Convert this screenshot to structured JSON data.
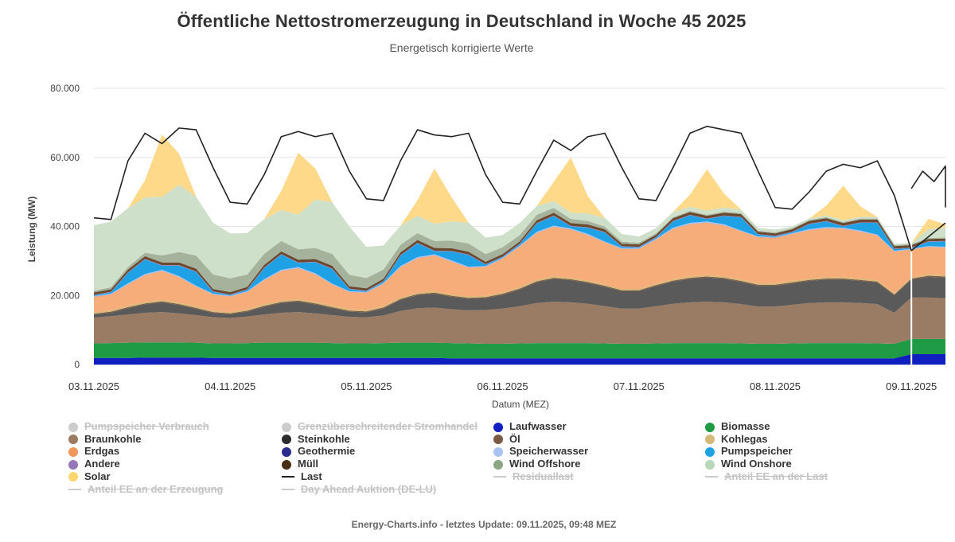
{
  "header": {
    "title": "Öffentliche Nettostromerzeugung in Deutschland in Woche 45 2025",
    "subtitle": "Energetisch korrigierte Werte"
  },
  "footer": {
    "text": "Energy-Charts.info - letztes Update: 09.11.2025, 09:48 MEZ"
  },
  "legend": [
    {
      "label": "Pumpspeicher Verbrauch",
      "color": "#c8c8c8",
      "symbol": "dot",
      "visible": false
    },
    {
      "label": "Grenzüberschreitender Stromhandel",
      "color": "#c8c8c8",
      "symbol": "dot",
      "visible": false
    },
    {
      "label": "Laufwasser",
      "color": "#1020c0",
      "symbol": "dot",
      "visible": true
    },
    {
      "label": "Biomasse",
      "color": "#1f9a45",
      "symbol": "dot",
      "visible": true
    },
    {
      "label": "Braunkohle",
      "color": "#9a7b63",
      "symbol": "dot",
      "visible": true
    },
    {
      "label": "Steinkohle",
      "color": "#2b2b2b",
      "symbol": "dot",
      "visible": true
    },
    {
      "label": "Öl",
      "color": "#7a5a43",
      "symbol": "dot",
      "visible": true
    },
    {
      "label": "Kohlegas",
      "color": "#d6b877",
      "symbol": "dot",
      "visible": true
    },
    {
      "label": "Erdgas",
      "color": "#f0985a",
      "symbol": "dot",
      "visible": true
    },
    {
      "label": "Geothermie",
      "color": "#2b2b8f",
      "symbol": "dot",
      "visible": true
    },
    {
      "label": "Speicherwasser",
      "color": "#aac4f2",
      "symbol": "dot",
      "visible": true
    },
    {
      "label": "Pumpspeicher",
      "color": "#1fa1e6",
      "symbol": "dot",
      "visible": true
    },
    {
      "label": "Andere",
      "color": "#9678b8",
      "symbol": "dot",
      "visible": true
    },
    {
      "label": "Müll",
      "color": "#4a2f14",
      "symbol": "dot",
      "visible": true
    },
    {
      "label": "Wind Offshore",
      "color": "#8aa683",
      "symbol": "dot",
      "visible": true
    },
    {
      "label": "Wind Onshore",
      "color": "#b7d8b7",
      "symbol": "dot",
      "visible": true
    },
    {
      "label": "Solar",
      "color": "#ffd66b",
      "symbol": "dot",
      "visible": true
    },
    {
      "label": "Last",
      "color": "#222222",
      "symbol": "line",
      "visible": true
    },
    {
      "label": "Residuallast",
      "color": "#c8c8c8",
      "symbol": "line",
      "visible": false
    },
    {
      "label": "Anteil EE an der Last",
      "color": "#c8c8c8",
      "symbol": "line",
      "visible": false
    },
    {
      "label": "Anteil EE an der Erzeugung",
      "color": "#c8c8c8",
      "symbol": "line",
      "visible": false
    },
    {
      "label": "Day Ahead Auktion (DE-LU)",
      "color": "#c8c8c8",
      "symbol": "line",
      "visible": false
    }
  ],
  "chart_data": {
    "type": "area",
    "stacked": true,
    "xlabel": "Datum (MEZ)",
    "ylabel": "Leistung (MW)",
    "ylim": [
      0,
      80000
    ],
    "yticks": [
      0,
      20000,
      40000,
      60000,
      80000
    ],
    "ytick_labels": [
      "0",
      "20.000",
      "40.000",
      "60.000",
      "80.000"
    ],
    "xlim": [
      0,
      150
    ],
    "x_unit": "hours since 03.11.2025 00:00",
    "xticks": [
      0,
      24,
      48,
      72,
      96,
      120,
      144
    ],
    "xtick_labels": [
      "03.11.2025",
      "04.11.2025",
      "05.11.2025",
      "06.11.2025",
      "07.11.2025",
      "08.11.2025",
      "09.11.2025"
    ],
    "forecast_from": 144,
    "grid": "horizontal",
    "legend_position": "bottom",
    "x": [
      0,
      3,
      6,
      9,
      12,
      15,
      18,
      21,
      24,
      27,
      30,
      33,
      36,
      39,
      42,
      45,
      48,
      51,
      54,
      57,
      60,
      63,
      66,
      69,
      72,
      75,
      78,
      81,
      84,
      87,
      90,
      93,
      96,
      99,
      102,
      105,
      108,
      111,
      114,
      117,
      120,
      123,
      126,
      129,
      132,
      135,
      138,
      141,
      144,
      147,
      150
    ],
    "series": [
      {
        "name": "Laufwasser",
        "color": "#1020c0",
        "values": [
          1900,
          1900,
          1900,
          2000,
          2000,
          2000,
          2000,
          1900,
          1900,
          1900,
          1900,
          1900,
          1900,
          1900,
          1900,
          1900,
          1900,
          1900,
          1900,
          1900,
          1900,
          1800,
          1800,
          1800,
          1800,
          1800,
          1800,
          1800,
          1800,
          1800,
          1800,
          1800,
          1800,
          1800,
          1800,
          1800,
          1800,
          1800,
          1800,
          1800,
          1800,
          1800,
          1800,
          1800,
          1800,
          1800,
          1800,
          1800,
          3000,
          3000,
          3000
        ]
      },
      {
        "name": "Biomasse",
        "color": "#1f9a45",
        "values": [
          4200,
          4300,
          4400,
          4400,
          4400,
          4400,
          4300,
          4200,
          4200,
          4300,
          4400,
          4400,
          4400,
          4400,
          4300,
          4200,
          4200,
          4300,
          4400,
          4400,
          4400,
          4400,
          4300,
          4200,
          4200,
          4300,
          4400,
          4400,
          4400,
          4400,
          4300,
          4200,
          4200,
          4300,
          4400,
          4400,
          4400,
          4400,
          4300,
          4200,
          4200,
          4300,
          4400,
          4400,
          4400,
          4400,
          4300,
          4200,
          4400,
          4400,
          4400
        ]
      },
      {
        "name": "Braunkohle",
        "color": "#9a7b63",
        "values": [
          7500,
          7800,
          8200,
          8600,
          8800,
          8400,
          8000,
          7600,
          7400,
          7700,
          8200,
          8700,
          8900,
          8500,
          8100,
          7700,
          7600,
          8000,
          9200,
          10000,
          10200,
          9800,
          9600,
          9800,
          10200,
          10800,
          11600,
          12000,
          11800,
          11400,
          10800,
          10200,
          10200,
          10800,
          11400,
          11800,
          12000,
          11800,
          11400,
          10800,
          10800,
          11200,
          11600,
          11800,
          11800,
          11600,
          11400,
          9000,
          12000,
          12000,
          11800
        ]
      },
      {
        "name": "Steinkohle",
        "color": "#5a5a5a",
        "values": [
          800,
          1000,
          1800,
          2400,
          2800,
          2400,
          1800,
          1200,
          1000,
          1400,
          2200,
          2800,
          3000,
          2600,
          2000,
          1500,
          1400,
          2000,
          3200,
          3800,
          4000,
          3600,
          3300,
          3400,
          4000,
          4800,
          6000,
          6600,
          6400,
          6000,
          5600,
          5000,
          5000,
          5800,
          6400,
          6800,
          7000,
          6800,
          6400,
          6000,
          6000,
          6200,
          6400,
          6600,
          6600,
          6400,
          6200,
          5000,
          5200,
          6000,
          6000
        ]
      },
      {
        "name": "Öl",
        "color": "#7a5a43",
        "values": [
          300,
          300,
          300,
          300,
          300,
          300,
          300,
          300,
          300,
          300,
          300,
          300,
          300,
          300,
          300,
          300,
          300,
          300,
          300,
          300,
          300,
          300,
          300,
          300,
          300,
          300,
          300,
          300,
          300,
          300,
          300,
          300,
          300,
          300,
          300,
          300,
          300,
          300,
          300,
          300,
          300,
          300,
          300,
          300,
          300,
          300,
          300,
          300,
          300,
          300,
          300
        ]
      },
      {
        "name": "Kohlegas",
        "color": "#d6b877",
        "values": [
          400,
          400,
          400,
          400,
          400,
          400,
          400,
          400,
          400,
          400,
          400,
          400,
          400,
          400,
          400,
          400,
          400,
          400,
          400,
          400,
          400,
          400,
          400,
          400,
          400,
          400,
          400,
          400,
          400,
          400,
          400,
          400,
          400,
          400,
          400,
          400,
          400,
          400,
          400,
          400,
          400,
          400,
          400,
          400,
          400,
          400,
          400,
          400,
          400,
          400,
          400
        ]
      },
      {
        "name": "Erdgas",
        "color": "#f7ad7a",
        "values": [
          4500,
          4600,
          6200,
          7800,
          8400,
          7400,
          5800,
          4700,
          4500,
          5000,
          7000,
          8600,
          9000,
          8000,
          6200,
          5000,
          5000,
          6500,
          8800,
          10000,
          10400,
          9500,
          8400,
          8400,
          9800,
          11800,
          13600,
          14400,
          14000,
          13200,
          12200,
          11600,
          11600,
          12800,
          14600,
          15200,
          15200,
          14800,
          14000,
          13400,
          13200,
          13600,
          14000,
          14200,
          14000,
          13600,
          13000,
          12000,
          8000,
          8000,
          8000
        ]
      },
      {
        "name": "Geothermie",
        "color": "#2b2b8f",
        "values": [
          30,
          30,
          30,
          30,
          30,
          30,
          30,
          30,
          30,
          30,
          30,
          30,
          30,
          30,
          30,
          30,
          30,
          30,
          30,
          30,
          30,
          30,
          30,
          30,
          30,
          30,
          30,
          30,
          30,
          30,
          30,
          30,
          30,
          30,
          30,
          30,
          30,
          30,
          30,
          30,
          30,
          30,
          30,
          30,
          30,
          30,
          30,
          30,
          30,
          30,
          30
        ]
      },
      {
        "name": "Speicherwasser",
        "color": "#aac4f2",
        "values": [
          200,
          200,
          300,
          300,
          300,
          300,
          200,
          200,
          200,
          200,
          300,
          300,
          300,
          300,
          200,
          200,
          200,
          200,
          300,
          300,
          300,
          300,
          200,
          200,
          200,
          200,
          300,
          300,
          300,
          300,
          200,
          200,
          200,
          200,
          300,
          300,
          300,
          300,
          200,
          200,
          200,
          200,
          300,
          300,
          300,
          300,
          200,
          200,
          200,
          200,
          200
        ]
      },
      {
        "name": "Pumpspeicher",
        "color": "#1fa1e6",
        "values": [
          200,
          400,
          3000,
          4200,
          1200,
          3000,
          4000,
          500,
          200,
          400,
          3200,
          4400,
          1200,
          3200,
          4200,
          600,
          200,
          400,
          3000,
          4000,
          900,
          2600,
          3400,
          400,
          200,
          400,
          2400,
          2800,
          600,
          1800,
          2600,
          400,
          200,
          300,
          1800,
          2200,
          700,
          2400,
          3800,
          500,
          200,
          300,
          1400,
          1600,
          400,
          2200,
          3400,
          500,
          200,
          1200,
          1500
        ]
      },
      {
        "name": "Andere",
        "color": "#9678b8",
        "values": [
          150,
          150,
          150,
          150,
          150,
          150,
          150,
          150,
          150,
          150,
          150,
          150,
          150,
          150,
          150,
          150,
          150,
          150,
          150,
          150,
          150,
          150,
          150,
          150,
          150,
          150,
          150,
          150,
          150,
          150,
          150,
          150,
          150,
          150,
          150,
          150,
          150,
          150,
          150,
          150,
          150,
          150,
          150,
          150,
          150,
          150,
          150,
          150,
          150,
          150,
          150
        ]
      },
      {
        "name": "Müll",
        "color": "#6b4a2f",
        "values": [
          700,
          700,
          800,
          800,
          800,
          800,
          800,
          700,
          700,
          700,
          800,
          800,
          800,
          800,
          800,
          700,
          700,
          700,
          800,
          800,
          800,
          800,
          800,
          700,
          700,
          700,
          800,
          800,
          800,
          800,
          800,
          700,
          700,
          700,
          800,
          800,
          800,
          800,
          800,
          700,
          700,
          700,
          800,
          800,
          800,
          800,
          800,
          700,
          700,
          700,
          700
        ]
      },
      {
        "name": "Wind Offshore",
        "color": "#a6b39c",
        "values": [
          500,
          600,
          800,
          1000,
          2000,
          3000,
          3800,
          4200,
          4000,
          3600,
          3200,
          3000,
          3000,
          3200,
          3400,
          3300,
          3000,
          2600,
          2200,
          2000,
          2000,
          2200,
          2400,
          2200,
          2000,
          1800,
          1600,
          1400,
          1200,
          1000,
          800,
          600,
          500,
          400,
          300,
          300,
          300,
          300,
          300,
          300,
          300,
          300,
          300,
          300,
          300,
          300,
          300,
          300,
          300,
          300,
          300
        ]
      },
      {
        "name": "Wind Onshore",
        "color": "#cfe0ca",
        "values": [
          19000,
          19000,
          17000,
          16000,
          17000,
          19500,
          17000,
          15000,
          13000,
          12000,
          10000,
          9000,
          10000,
          14000,
          15000,
          14000,
          9000,
          7000,
          5500,
          5000,
          5000,
          5600,
          6000,
          4800,
          3500,
          3500,
          2500,
          2000,
          1800,
          2200,
          2500,
          2200,
          1800,
          1500,
          1500,
          1200,
          1200,
          1200,
          1000,
          800,
          800,
          500,
          400,
          500,
          500,
          500,
          500,
          400,
          300,
          2500,
          2800
        ]
      },
      {
        "name": "Solar",
        "color": "#ffd98a",
        "values": [
          0,
          0,
          0,
          5000,
          18000,
          9000,
          0,
          0,
          0,
          0,
          0,
          5500,
          18000,
          9000,
          0,
          0,
          0,
          0,
          0,
          4500,
          16000,
          7000,
          0,
          0,
          0,
          0,
          0,
          5500,
          16000,
          5000,
          0,
          0,
          0,
          0,
          0,
          3500,
          12000,
          4000,
          0,
          0,
          0,
          0,
          0,
          2800,
          10000,
          3000,
          0,
          0,
          0,
          3000,
          1000
        ]
      },
      {
        "name": "Last",
        "type": "line",
        "color": "#222222",
        "values": [
          42500,
          42000,
          59000,
          67000,
          64000,
          68500,
          68000,
          57000,
          47000,
          46500,
          55000,
          66000,
          67500,
          66000,
          67000,
          56000,
          48000,
          47500,
          59000,
          68000,
          66500,
          66000,
          67000,
          55000,
          47000,
          46500,
          56000,
          65000,
          62000,
          66000,
          67000,
          57000,
          48000,
          47500,
          57000,
          67000,
          69000,
          68000,
          67000,
          56000,
          45500,
          45000,
          50000,
          56000,
          58000,
          57000,
          59000,
          49000,
          33000,
          37000,
          41000
        ]
      },
      {
        "name": "Last (Prognose)",
        "type": "line",
        "color": "#222222",
        "x": [
          144,
          146,
          148,
          150,
          152,
          154,
          156
        ],
        "values": [
          51000,
          56000,
          53000,
          57500,
          56000,
          52000,
          45500
        ]
      }
    ]
  }
}
